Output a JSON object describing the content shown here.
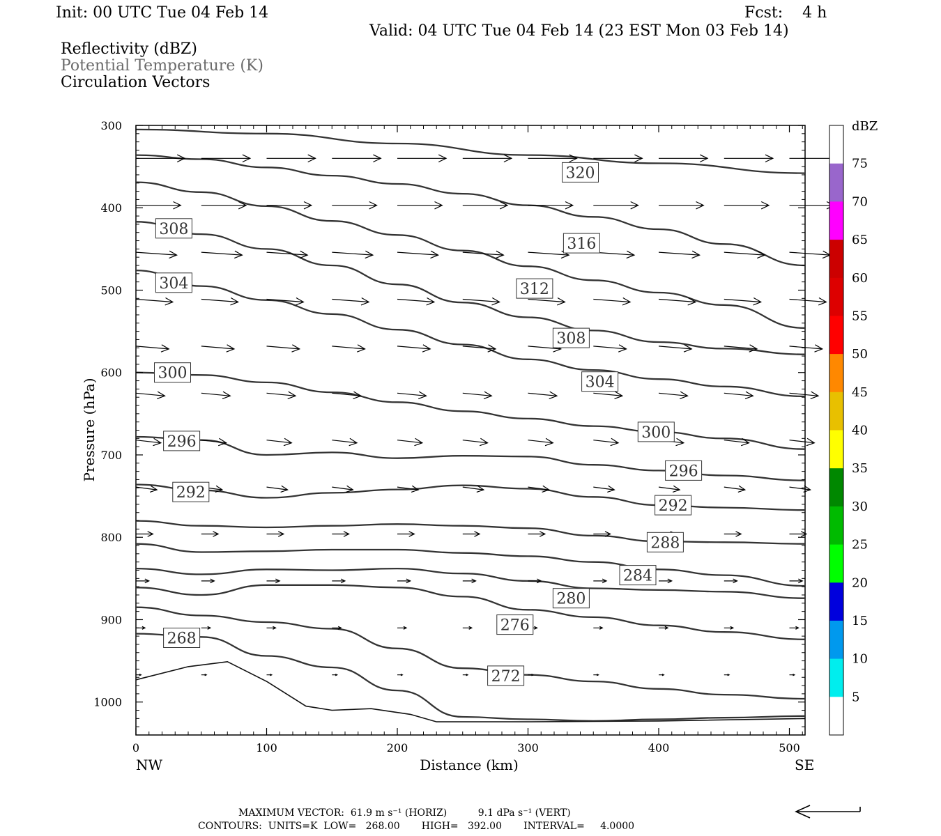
{
  "header": {
    "init": "Init: 00 UTC Tue 04 Feb 14",
    "fcst": "Fcst:    4 h",
    "valid": "Valid: 04 UTC Tue 04 Feb 14 (23 EST Mon 03 Feb 14)",
    "field1": "Reflectivity (dBZ)",
    "field2": "Potential Temperature (K)",
    "field3": "Circulation Vectors"
  },
  "colorbar": {
    "unit": "dBZ",
    "labels": [
      "75",
      "70",
      "65",
      "60",
      "55",
      "50",
      "45",
      "40",
      "35",
      "30",
      "25",
      "20",
      "15",
      "10",
      "5"
    ],
    "colors": [
      "#ffffff",
      "#9966cc",
      "#ff00ff",
      "#cc0000",
      "#dd0000",
      "#ff0000",
      "#ff8800",
      "#e8c000",
      "#ffff00",
      "#008800",
      "#00bb00",
      "#00ff00",
      "#0000dd",
      "#0099ee",
      "#00eeee",
      "#ffffff"
    ]
  },
  "footer": {
    "line1": "MAXIMUM VECTOR:  61.9 m s⁻¹ (HORIZ)          9.1 dPa s⁻¹ (VERT)",
    "line2": "CONTOURS:  UNITS=K  LOW=   268.00       HIGH=   392.00       INTERVAL=     4.0000"
  },
  "chart_data": {
    "type": "line",
    "title": "",
    "xlabel": "Distance (km)",
    "ylabel": "Pressure (hPa)",
    "xlim": [
      0,
      512
    ],
    "ylim": [
      1040,
      300
    ],
    "x_ticks": [
      "0",
      "100",
      "200",
      "300",
      "400",
      "500"
    ],
    "x_tick_values": [
      0,
      100,
      200,
      300,
      400,
      500
    ],
    "y_ticks": [
      "300",
      "400",
      "500",
      "600",
      "700",
      "800",
      "900",
      "1000"
    ],
    "y_tick_values": [
      300,
      400,
      500,
      600,
      700,
      800,
      900,
      1000
    ],
    "left_end_label": "NW",
    "right_end_label": "SE",
    "contour_labels": [
      {
        "text": "320",
        "x": 340,
        "p": 357
      },
      {
        "text": "316",
        "x": 341,
        "p": 443
      },
      {
        "text": "312",
        "x": 305,
        "p": 498
      },
      {
        "text": "308",
        "x": 29,
        "p": 425
      },
      {
        "text": "308",
        "x": 333,
        "p": 558
      },
      {
        "text": "304",
        "x": 29,
        "p": 491
      },
      {
        "text": "304",
        "x": 355,
        "p": 611
      },
      {
        "text": "300",
        "x": 28,
        "p": 600
      },
      {
        "text": "300",
        "x": 398,
        "p": 672
      },
      {
        "text": "296",
        "x": 35,
        "p": 683
      },
      {
        "text": "296",
        "x": 419,
        "p": 719
      },
      {
        "text": "292",
        "x": 42,
        "p": 745
      },
      {
        "text": "292",
        "x": 411,
        "p": 761
      },
      {
        "text": "288",
        "x": 405,
        "p": 806
      },
      {
        "text": "284",
        "x": 384,
        "p": 846
      },
      {
        "text": "280",
        "x": 333,
        "p": 874
      },
      {
        "text": "276",
        "x": 290,
        "p": 906
      },
      {
        "text": "272",
        "x": 283,
        "p": 968
      },
      {
        "text": "268",
        "x": 35,
        "p": 922
      }
    ],
    "series": [
      {
        "values": [
          [
            0,
            305
          ],
          [
            100,
            310
          ],
          [
            200,
            322
          ],
          [
            300,
            336
          ],
          [
            400,
            346
          ],
          [
            512,
            358
          ]
        ]
      },
      {
        "values": [
          [
            0,
            336
          ],
          [
            50,
            341
          ],
          [
            100,
            351
          ],
          [
            150,
            361
          ],
          [
            200,
            371
          ],
          [
            250,
            383
          ],
          [
            300,
            397
          ],
          [
            350,
            411
          ],
          [
            400,
            426
          ],
          [
            450,
            444
          ],
          [
            512,
            470
          ]
        ]
      },
      {
        "values": [
          [
            0,
            369
          ],
          [
            50,
            381
          ],
          [
            100,
            398
          ],
          [
            150,
            416
          ],
          [
            200,
            433
          ],
          [
            250,
            452
          ],
          [
            300,
            471
          ],
          [
            350,
            488
          ],
          [
            400,
            503
          ],
          [
            450,
            518
          ],
          [
            512,
            546
          ]
        ]
      },
      {
        "values": [
          [
            0,
            417
          ],
          [
            50,
            432
          ],
          [
            100,
            450
          ],
          [
            150,
            470
          ],
          [
            200,
            493
          ],
          [
            250,
            515
          ],
          [
            300,
            533
          ],
          [
            350,
            549
          ],
          [
            400,
            563
          ],
          [
            450,
            571
          ],
          [
            512,
            578
          ]
        ]
      },
      {
        "values": [
          [
            0,
            476
          ],
          [
            50,
            495
          ],
          [
            100,
            512
          ],
          [
            150,
            529
          ],
          [
            200,
            548
          ],
          [
            250,
            566
          ],
          [
            300,
            584
          ],
          [
            350,
            597
          ],
          [
            400,
            608
          ],
          [
            450,
            617
          ],
          [
            512,
            629
          ]
        ]
      },
      {
        "values": [
          [
            0,
            600
          ],
          [
            50,
            603
          ],
          [
            100,
            612
          ],
          [
            150,
            624
          ],
          [
            200,
            636
          ],
          [
            250,
            647
          ],
          [
            300,
            656
          ],
          [
            350,
            665
          ],
          [
            400,
            672
          ],
          [
            450,
            680
          ],
          [
            512,
            693
          ]
        ]
      },
      {
        "values": [
          [
            0,
            678
          ],
          [
            50,
            682
          ],
          [
            100,
            700
          ],
          [
            150,
            697
          ],
          [
            200,
            704
          ],
          [
            250,
            701
          ],
          [
            300,
            702
          ],
          [
            350,
            712
          ],
          [
            400,
            719
          ],
          [
            450,
            725
          ],
          [
            512,
            731
          ]
        ]
      },
      {
        "values": [
          [
            0,
            736
          ],
          [
            50,
            743
          ],
          [
            100,
            752
          ],
          [
            150,
            746
          ],
          [
            200,
            742
          ],
          [
            250,
            737
          ],
          [
            300,
            741
          ],
          [
            350,
            751
          ],
          [
            400,
            761
          ],
          [
            450,
            764
          ],
          [
            512,
            767
          ]
        ]
      },
      {
        "values": [
          [
            0,
            780
          ],
          [
            50,
            786
          ],
          [
            100,
            788
          ],
          [
            150,
            786
          ],
          [
            200,
            784
          ],
          [
            250,
            786
          ],
          [
            300,
            789
          ],
          [
            350,
            798
          ],
          [
            400,
            805
          ],
          [
            450,
            806
          ],
          [
            512,
            808
          ]
        ]
      },
      {
        "values": [
          [
            0,
            808
          ],
          [
            50,
            818
          ],
          [
            100,
            817
          ],
          [
            150,
            815
          ],
          [
            200,
            815
          ],
          [
            250,
            819
          ],
          [
            300,
            823
          ],
          [
            350,
            830
          ],
          [
            400,
            839
          ],
          [
            450,
            846
          ],
          [
            512,
            859
          ]
        ]
      },
      {
        "values": [
          [
            0,
            838
          ],
          [
            50,
            845
          ],
          [
            100,
            839
          ],
          [
            150,
            840
          ],
          [
            200,
            838
          ],
          [
            250,
            844
          ],
          [
            300,
            853
          ],
          [
            350,
            862
          ],
          [
            400,
            864
          ],
          [
            450,
            866
          ],
          [
            512,
            874
          ]
        ]
      },
      {
        "values": [
          [
            0,
            861
          ],
          [
            50,
            870
          ],
          [
            100,
            858
          ],
          [
            150,
            858
          ],
          [
            200,
            861
          ],
          [
            250,
            872
          ],
          [
            300,
            888
          ],
          [
            350,
            897
          ],
          [
            400,
            907
          ],
          [
            450,
            915
          ],
          [
            512,
            924
          ]
        ]
      },
      {
        "values": [
          [
            0,
            885
          ],
          [
            50,
            895
          ],
          [
            100,
            903
          ],
          [
            150,
            911
          ],
          [
            200,
            935
          ],
          [
            250,
            959
          ],
          [
            300,
            967
          ],
          [
            350,
            975
          ],
          [
            400,
            984
          ],
          [
            450,
            991
          ],
          [
            512,
            996
          ]
        ]
      },
      {
        "values": [
          [
            0,
            917
          ],
          [
            50,
            921
          ],
          [
            100,
            944
          ],
          [
            150,
            958
          ],
          [
            200,
            986
          ],
          [
            250,
            1018
          ],
          [
            300,
            1021
          ],
          [
            350,
            1023
          ],
          [
            400,
            1021
          ],
          [
            450,
            1019
          ],
          [
            512,
            1017
          ]
        ]
      }
    ]
  }
}
